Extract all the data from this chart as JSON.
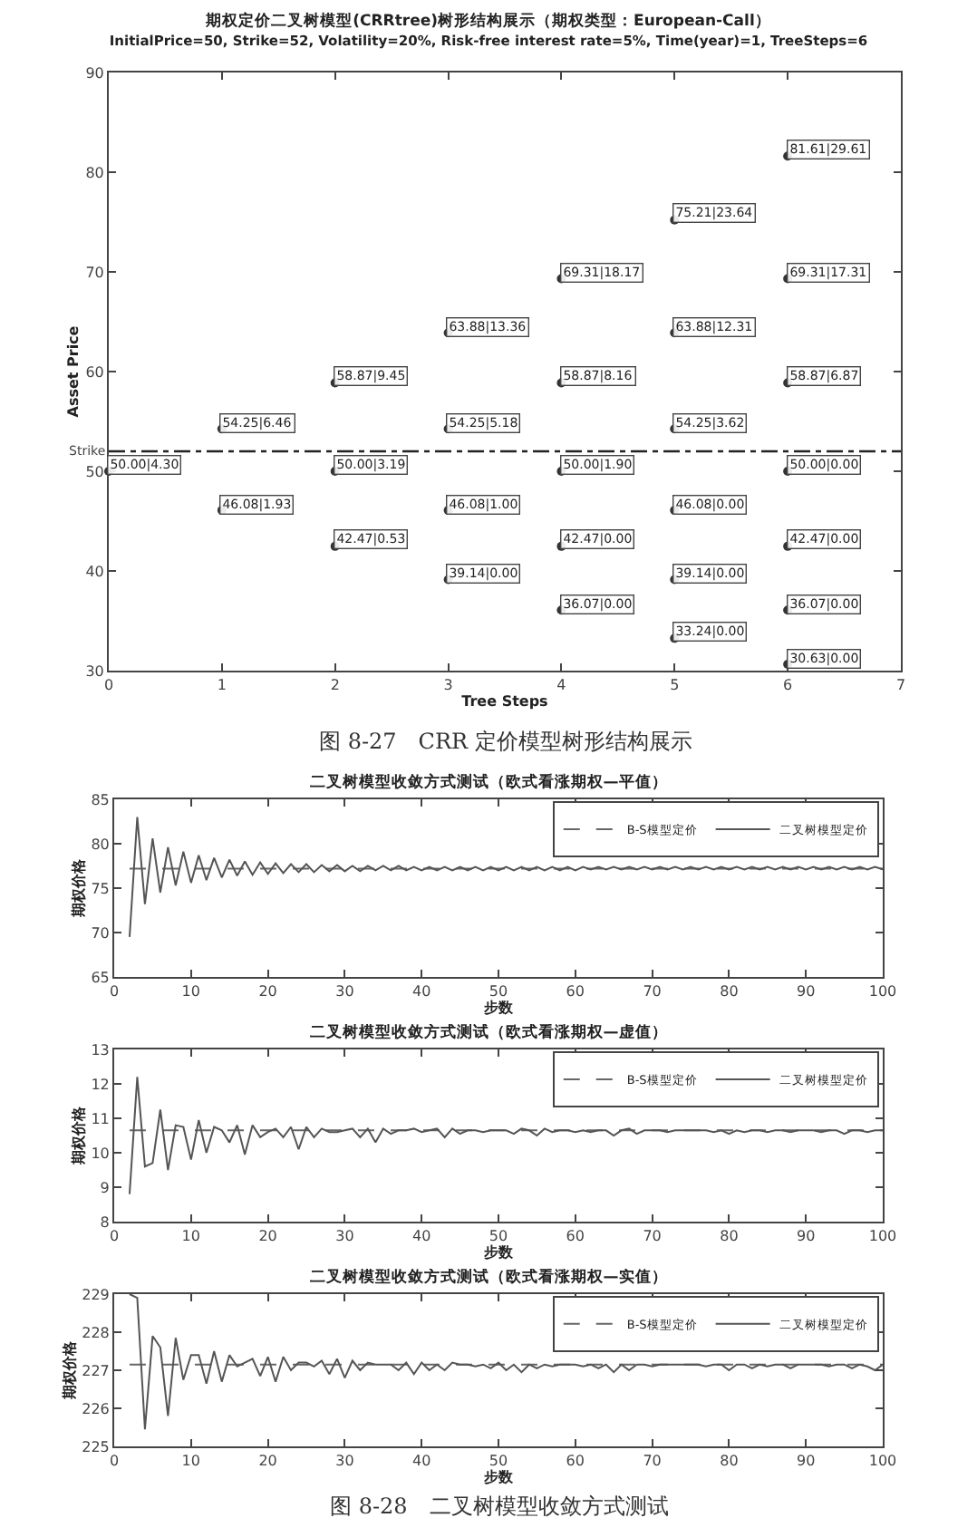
{
  "chart_data": [
    {
      "type": "scatter",
      "title": "期权定价二叉树模型(CRRtree)树形结构展示（期权类型：European-Call）",
      "subtitle": "InitialPrice=50, Strike=52, Volatility=20%, Risk-free interest rate=5%, Time(year)=1, TreeSteps=6",
      "xlabel": "Tree Steps",
      "ylabel": "Asset Price",
      "marker": "circle",
      "color": "#333333",
      "x": [
        0,
        1,
        1,
        2,
        2,
        2,
        3,
        3,
        3,
        3,
        4,
        4,
        4,
        4,
        4,
        5,
        5,
        5,
        5,
        5,
        5,
        6,
        6,
        6,
        6,
        6,
        6,
        6
      ],
      "values": [
        50.0,
        54.25,
        46.08,
        58.87,
        50.0,
        42.47,
        63.88,
        54.25,
        46.08,
        39.14,
        69.31,
        58.87,
        50.0,
        42.47,
        36.07,
        75.21,
        63.88,
        54.25,
        46.08,
        39.14,
        33.24,
        81.61,
        69.31,
        58.87,
        50.0,
        42.47,
        36.07,
        30.63
      ],
      "value_labels": [
        "50.00|4.30",
        "54.25|6.46",
        "46.08|1.93",
        "58.87|9.45",
        "50.00|3.19",
        "42.47|0.53",
        "63.88|13.36",
        "54.25|5.18",
        "46.08|1.00",
        "39.14|0.00",
        "69.31|18.17",
        "58.87|8.16",
        "50.00|1.90",
        "42.47|0.00",
        "36.07|0.00",
        "75.21|23.64",
        "63.88|12.31",
        "54.25|3.62",
        "46.08|0.00",
        "39.14|0.00",
        "33.24|0.00",
        "81.61|29.61",
        "69.31|17.31",
        "58.87|6.87",
        "50.00|0.00",
        "42.47|0.00",
        "36.07|0.00",
        "30.63|0.00"
      ],
      "xlim": [
        0,
        7
      ],
      "xticks": [
        0,
        1,
        2,
        3,
        4,
        5,
        6,
        7
      ],
      "ylim": [
        30,
        90
      ],
      "yticks": [
        30,
        40,
        50,
        60,
        70,
        80,
        90
      ],
      "ref_lines": [
        {
          "axis": "y",
          "value": 52,
          "label": "Strike",
          "color": "#222222",
          "line_style": "dashed"
        }
      ],
      "annotations": [
        "图 8-27　CRR 定价模型树形结构展示"
      ]
    },
    {
      "type": "line",
      "title": "二叉树模型收敛方式测试（欧式看涨期权—平值）",
      "xlabel": "步数",
      "ylabel": "期权价格",
      "xlim": [
        0,
        100
      ],
      "xticks": [
        0,
        10,
        20,
        30,
        40,
        50,
        60,
        70,
        80,
        90,
        100
      ],
      "ylim": [
        65,
        85
      ],
      "yticks": [
        65,
        70,
        75,
        80,
        85
      ],
      "legend": "top right",
      "series": [
        {
          "name": "B-S模型定价",
          "color": "#666666",
          "line_style": "dashed",
          "x": [
            2,
            100
          ],
          "values": [
            77.2,
            77.2
          ]
        },
        {
          "name": "二叉树模型定价",
          "color": "#555555",
          "line_style": "solid",
          "x": [
            2,
            3,
            4,
            5,
            6,
            7,
            8,
            9,
            10,
            11,
            12,
            13,
            14,
            15,
            16,
            17,
            18,
            19,
            20,
            21,
            22,
            23,
            24,
            25,
            26,
            27,
            28,
            29,
            30,
            31,
            32,
            33,
            34,
            35,
            36,
            37,
            38,
            39,
            40,
            41,
            42,
            43,
            44,
            45,
            46,
            47,
            48,
            49,
            50,
            51,
            52,
            53,
            54,
            55,
            56,
            57,
            58,
            59,
            60,
            61,
            62,
            63,
            64,
            65,
            66,
            67,
            68,
            69,
            70,
            71,
            72,
            73,
            74,
            75,
            76,
            77,
            78,
            79,
            80,
            81,
            82,
            83,
            84,
            85,
            86,
            87,
            88,
            89,
            90,
            91,
            92,
            93,
            94,
            95,
            96,
            97,
            98,
            99,
            100
          ],
          "values": [
            69.5,
            83.0,
            73.2,
            80.6,
            74.5,
            79.6,
            75.3,
            79.1,
            75.6,
            78.7,
            75.9,
            78.4,
            76.2,
            78.2,
            76.4,
            78.0,
            76.5,
            77.9,
            76.6,
            77.8,
            76.7,
            77.7,
            76.8,
            77.7,
            76.8,
            77.6,
            76.9,
            77.6,
            76.9,
            77.5,
            76.9,
            77.5,
            77.0,
            77.5,
            77.0,
            77.5,
            77.0,
            77.4,
            77.0,
            77.4,
            77.0,
            77.4,
            77.0,
            77.4,
            77.0,
            77.4,
            77.0,
            77.4,
            77.0,
            77.4,
            77.0,
            77.4,
            77.0,
            77.4,
            77.0,
            77.4,
            77.0,
            77.4,
            77.0,
            77.4,
            77.1,
            77.4,
            77.1,
            77.4,
            77.1,
            77.4,
            77.1,
            77.4,
            77.1,
            77.4,
            77.1,
            77.4,
            77.1,
            77.4,
            77.1,
            77.4,
            77.1,
            77.4,
            77.1,
            77.4,
            77.1,
            77.4,
            77.1,
            77.4,
            77.1,
            77.4,
            77.1,
            77.4,
            77.1,
            77.4,
            77.1,
            77.4,
            77.1,
            77.4,
            77.1,
            77.4,
            77.1,
            77.4,
            77.1
          ]
        }
      ]
    },
    {
      "type": "line",
      "title": "二叉树模型收敛方式测试（欧式看涨期权—虚值）",
      "xlabel": "步数",
      "ylabel": "期权价格",
      "xlim": [
        0,
        100
      ],
      "xticks": [
        0,
        10,
        20,
        30,
        40,
        50,
        60,
        70,
        80,
        90,
        100
      ],
      "ylim": [
        8,
        13
      ],
      "yticks": [
        8,
        9,
        10,
        11,
        12,
        13
      ],
      "legend": "top right",
      "series": [
        {
          "name": "B-S模型定价",
          "color": "#666666",
          "line_style": "dashed",
          "x": [
            2,
            100
          ],
          "values": [
            10.65,
            10.65
          ]
        },
        {
          "name": "二叉树模型定价",
          "color": "#555555",
          "line_style": "solid",
          "x": [
            2,
            3,
            4,
            5,
            6,
            7,
            8,
            9,
            10,
            11,
            12,
            13,
            14,
            15,
            16,
            17,
            18,
            19,
            20,
            21,
            22,
            23,
            24,
            25,
            26,
            27,
            28,
            29,
            30,
            31,
            32,
            33,
            34,
            35,
            36,
            37,
            38,
            39,
            40,
            41,
            42,
            43,
            44,
            45,
            46,
            47,
            48,
            49,
            50,
            51,
            52,
            53,
            54,
            55,
            56,
            57,
            58,
            59,
            60,
            61,
            62,
            63,
            64,
            65,
            66,
            67,
            68,
            69,
            70,
            71,
            72,
            73,
            74,
            75,
            76,
            77,
            78,
            79,
            80,
            81,
            82,
            83,
            84,
            85,
            86,
            87,
            88,
            89,
            90,
            91,
            92,
            93,
            94,
            95,
            96,
            97,
            98,
            99,
            100
          ],
          "values": [
            8.8,
            12.2,
            9.6,
            9.7,
            11.25,
            9.5,
            10.8,
            10.75,
            9.8,
            10.95,
            10.0,
            10.75,
            10.65,
            10.3,
            10.8,
            9.95,
            10.8,
            10.45,
            10.6,
            10.7,
            10.45,
            10.75,
            10.1,
            10.75,
            10.45,
            10.7,
            10.6,
            10.6,
            10.65,
            10.7,
            10.45,
            10.7,
            10.3,
            10.7,
            10.55,
            10.65,
            10.65,
            10.7,
            10.6,
            10.65,
            10.7,
            10.45,
            10.7,
            10.55,
            10.65,
            10.65,
            10.6,
            10.65,
            10.65,
            10.65,
            10.55,
            10.7,
            10.65,
            10.5,
            10.7,
            10.6,
            10.65,
            10.65,
            10.6,
            10.65,
            10.6,
            10.65,
            10.65,
            10.5,
            10.65,
            10.7,
            10.55,
            10.65,
            10.65,
            10.65,
            10.6,
            10.65,
            10.65,
            10.65,
            10.65,
            10.65,
            10.6,
            10.65,
            10.55,
            10.65,
            10.6,
            10.65,
            10.65,
            10.6,
            10.65,
            10.65,
            10.6,
            10.65,
            10.65,
            10.65,
            10.6,
            10.65,
            10.65,
            10.55,
            10.65,
            10.65,
            10.6,
            10.65,
            10.65
          ]
        }
      ]
    },
    {
      "type": "line",
      "title": "二叉树模型收敛方式测试（欧式看涨期权—实值）",
      "xlabel": "步数",
      "ylabel": "期权价格",
      "xlim": [
        0,
        100
      ],
      "xticks": [
        0,
        10,
        20,
        30,
        40,
        50,
        60,
        70,
        80,
        90,
        100
      ],
      "ylim": [
        225,
        229
      ],
      "yticks": [
        225,
        226,
        227,
        228,
        229
      ],
      "legend": "top right",
      "series": [
        {
          "name": "B-S模型定价",
          "color": "#666666",
          "line_style": "dashed",
          "x": [
            2,
            100
          ],
          "values": [
            227.15,
            227.15
          ]
        },
        {
          "name": "二叉树模型定价",
          "color": "#555555",
          "line_style": "solid",
          "x": [
            2,
            3,
            4,
            5,
            6,
            7,
            8,
            9,
            10,
            11,
            12,
            13,
            14,
            15,
            16,
            17,
            18,
            19,
            20,
            21,
            22,
            23,
            24,
            25,
            26,
            27,
            28,
            29,
            30,
            31,
            32,
            33,
            34,
            35,
            36,
            37,
            38,
            39,
            40,
            41,
            42,
            43,
            44,
            45,
            46,
            47,
            48,
            49,
            50,
            51,
            52,
            53,
            54,
            55,
            56,
            57,
            58,
            59,
            60,
            61,
            62,
            63,
            64,
            65,
            66,
            67,
            68,
            69,
            70,
            71,
            72,
            73,
            74,
            75,
            76,
            77,
            78,
            79,
            80,
            81,
            82,
            83,
            84,
            85,
            86,
            87,
            88,
            89,
            90,
            91,
            92,
            93,
            94,
            95,
            96,
            97,
            98,
            99,
            100
          ],
          "values": [
            229.0,
            228.9,
            225.45,
            227.9,
            227.6,
            225.8,
            227.85,
            226.75,
            227.4,
            227.4,
            226.65,
            227.5,
            226.7,
            227.4,
            227.1,
            227.2,
            227.3,
            226.85,
            227.35,
            226.7,
            227.35,
            227.0,
            227.2,
            227.2,
            227.1,
            227.25,
            226.9,
            227.3,
            226.8,
            227.25,
            227.0,
            227.2,
            227.15,
            227.15,
            227.15,
            227.0,
            227.2,
            226.9,
            227.2,
            227.0,
            227.15,
            227.0,
            227.2,
            227.15,
            227.15,
            227.1,
            227.15,
            227.05,
            227.2,
            227.0,
            227.15,
            226.95,
            227.15,
            227.05,
            227.15,
            227.1,
            227.15,
            227.15,
            227.15,
            227.1,
            227.15,
            227.05,
            227.15,
            226.95,
            227.15,
            227.0,
            227.15,
            227.15,
            227.1,
            227.15,
            227.15,
            227.15,
            227.15,
            227.15,
            227.15,
            227.1,
            227.15,
            227.15,
            227.0,
            227.15,
            227.15,
            227.05,
            227.15,
            227.1,
            227.15,
            227.15,
            227.05,
            227.15,
            227.15,
            227.15,
            227.15,
            227.1,
            227.15,
            227.15,
            227.05,
            227.15,
            227.1,
            227.0,
            227.15
          ]
        }
      ],
      "annotations": [
        "图 8-28　二叉树模型收敛方式测试"
      ]
    }
  ]
}
